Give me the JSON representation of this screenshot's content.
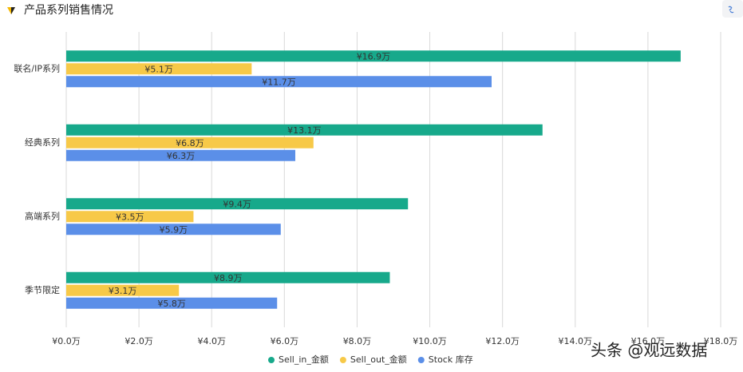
{
  "chart_data": {
    "type": "hbar",
    "title": "产品系列销售情况",
    "categories": [
      "联名/IP系列",
      "经典系列",
      "高端系列",
      "季节限定"
    ],
    "series": [
      {
        "name": "Sell_in_金额",
        "color": "#17a98b",
        "values": [
          16.9,
          13.1,
          9.4,
          8.9
        ],
        "value_labels": [
          "¥16.9万",
          "¥13.1万",
          "¥9.4万",
          "¥8.9万"
        ]
      },
      {
        "name": "Sell_out_金额",
        "color": "#f7c948",
        "values": [
          5.1,
          6.8,
          3.5,
          3.1
        ],
        "value_labels": [
          "¥5.1万",
          "¥6.8万",
          "¥3.5万",
          "¥3.1万"
        ]
      },
      {
        "name": "Stock 库存",
        "color": "#5b8fe8",
        "values": [
          11.7,
          6.3,
          5.9,
          5.8
        ],
        "value_labels": [
          "¥11.7万",
          "¥6.3万",
          "¥5.9万",
          "¥5.8万"
        ]
      }
    ],
    "xlim": [
      0,
      18
    ],
    "xticks": [
      {
        "value": 0,
        "label": "¥0.0万"
      },
      {
        "value": 2,
        "label": "¥2.0万"
      },
      {
        "value": 4,
        "label": "¥4.0万"
      },
      {
        "value": 6,
        "label": "¥6.0万"
      },
      {
        "value": 8,
        "label": "¥8.0万"
      },
      {
        "value": 10,
        "label": "¥10.0万"
      },
      {
        "value": 12,
        "label": "¥12.0万"
      },
      {
        "value": 14,
        "label": "¥14.0万"
      },
      {
        "value": 16,
        "label": "¥16.0万"
      },
      {
        "value": 18,
        "label": "¥18.0万"
      }
    ],
    "grid": true,
    "legend": "bottom"
  },
  "watermark": "头条 @观远数据"
}
